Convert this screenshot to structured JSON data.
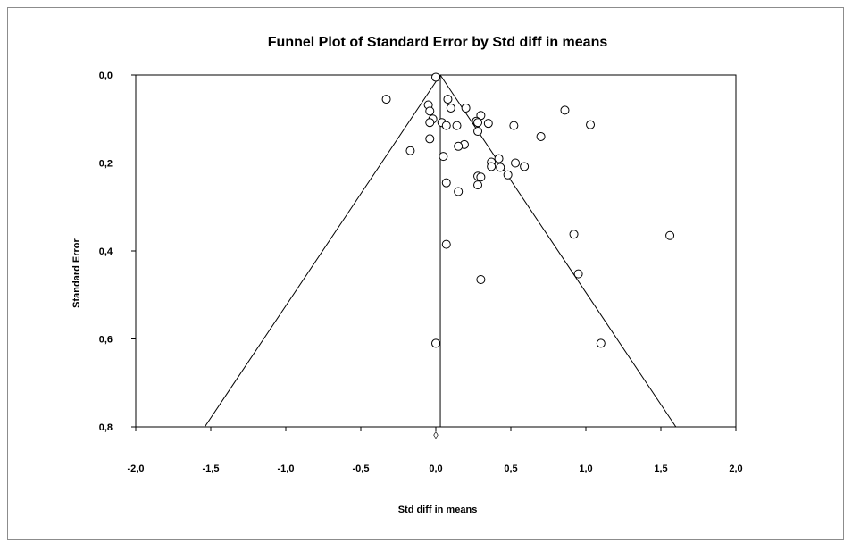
{
  "chart_data": {
    "type": "scatter",
    "title": "Funnel Plot of Standard Error by Std diff in means",
    "xlabel": "Std diff in means",
    "ylabel": "Standard Error",
    "xlim": [
      -2.0,
      2.0
    ],
    "ylim": [
      0.0,
      0.8
    ],
    "y_inverted": true,
    "grid": false,
    "x_ticks": [
      "-2,0",
      "-1,5",
      "-1,0",
      "-0,5",
      "0,0",
      "0,5",
      "1,0",
      "1,5",
      "2,0"
    ],
    "x_tick_values": [
      -2.0,
      -1.5,
      -1.0,
      -0.5,
      0.0,
      0.5,
      1.0,
      1.5,
      2.0
    ],
    "y_ticks": [
      "0,0",
      "0,2",
      "0,4",
      "0,6",
      "0,8"
    ],
    "y_tick_values": [
      0.0,
      0.2,
      0.4,
      0.6,
      0.8
    ],
    "summary_effect": 0.03,
    "funnel": {
      "apex": [
        0.03,
        0.0
      ],
      "base_left": [
        -1.54,
        0.8
      ],
      "base_right": [
        1.6,
        0.8
      ]
    },
    "diamond_marker": {
      "x": 0.0,
      "label": "◊"
    },
    "points": [
      {
        "x": 0.0,
        "y": 0.005
      },
      {
        "x": -0.33,
        "y": 0.055
      },
      {
        "x": 0.08,
        "y": 0.055
      },
      {
        "x": -0.05,
        "y": 0.068
      },
      {
        "x": -0.04,
        "y": 0.082
      },
      {
        "x": 0.1,
        "y": 0.075
      },
      {
        "x": 0.2,
        "y": 0.075
      },
      {
        "x": 0.86,
        "y": 0.08
      },
      {
        "x": 0.3,
        "y": 0.092
      },
      {
        "x": -0.02,
        "y": 0.1
      },
      {
        "x": -0.04,
        "y": 0.108
      },
      {
        "x": 0.04,
        "y": 0.108
      },
      {
        "x": 0.07,
        "y": 0.115
      },
      {
        "x": 0.14,
        "y": 0.115
      },
      {
        "x": 0.27,
        "y": 0.105
      },
      {
        "x": 0.28,
        "y": 0.108
      },
      {
        "x": 0.35,
        "y": 0.11
      },
      {
        "x": 0.52,
        "y": 0.115
      },
      {
        "x": 1.03,
        "y": 0.113
      },
      {
        "x": 0.28,
        "y": 0.128
      },
      {
        "x": -0.04,
        "y": 0.145
      },
      {
        "x": 0.7,
        "y": 0.14
      },
      {
        "x": 0.19,
        "y": 0.158
      },
      {
        "x": 0.15,
        "y": 0.162
      },
      {
        "x": -0.17,
        "y": 0.172
      },
      {
        "x": 0.05,
        "y": 0.185
      },
      {
        "x": 0.42,
        "y": 0.19
      },
      {
        "x": 0.37,
        "y": 0.198
      },
      {
        "x": 0.53,
        "y": 0.2
      },
      {
        "x": 0.37,
        "y": 0.208
      },
      {
        "x": 0.43,
        "y": 0.21
      },
      {
        "x": 0.59,
        "y": 0.208
      },
      {
        "x": 0.48,
        "y": 0.227
      },
      {
        "x": 0.28,
        "y": 0.23
      },
      {
        "x": 0.3,
        "y": 0.232
      },
      {
        "x": 0.07,
        "y": 0.245
      },
      {
        "x": 0.28,
        "y": 0.25
      },
      {
        "x": 0.15,
        "y": 0.265
      },
      {
        "x": 0.92,
        "y": 0.362
      },
      {
        "x": 1.56,
        "y": 0.365
      },
      {
        "x": 0.07,
        "y": 0.385
      },
      {
        "x": 0.95,
        "y": 0.452
      },
      {
        "x": 0.3,
        "y": 0.465
      },
      {
        "x": 0.0,
        "y": 0.61
      },
      {
        "x": 1.1,
        "y": 0.61
      }
    ]
  }
}
